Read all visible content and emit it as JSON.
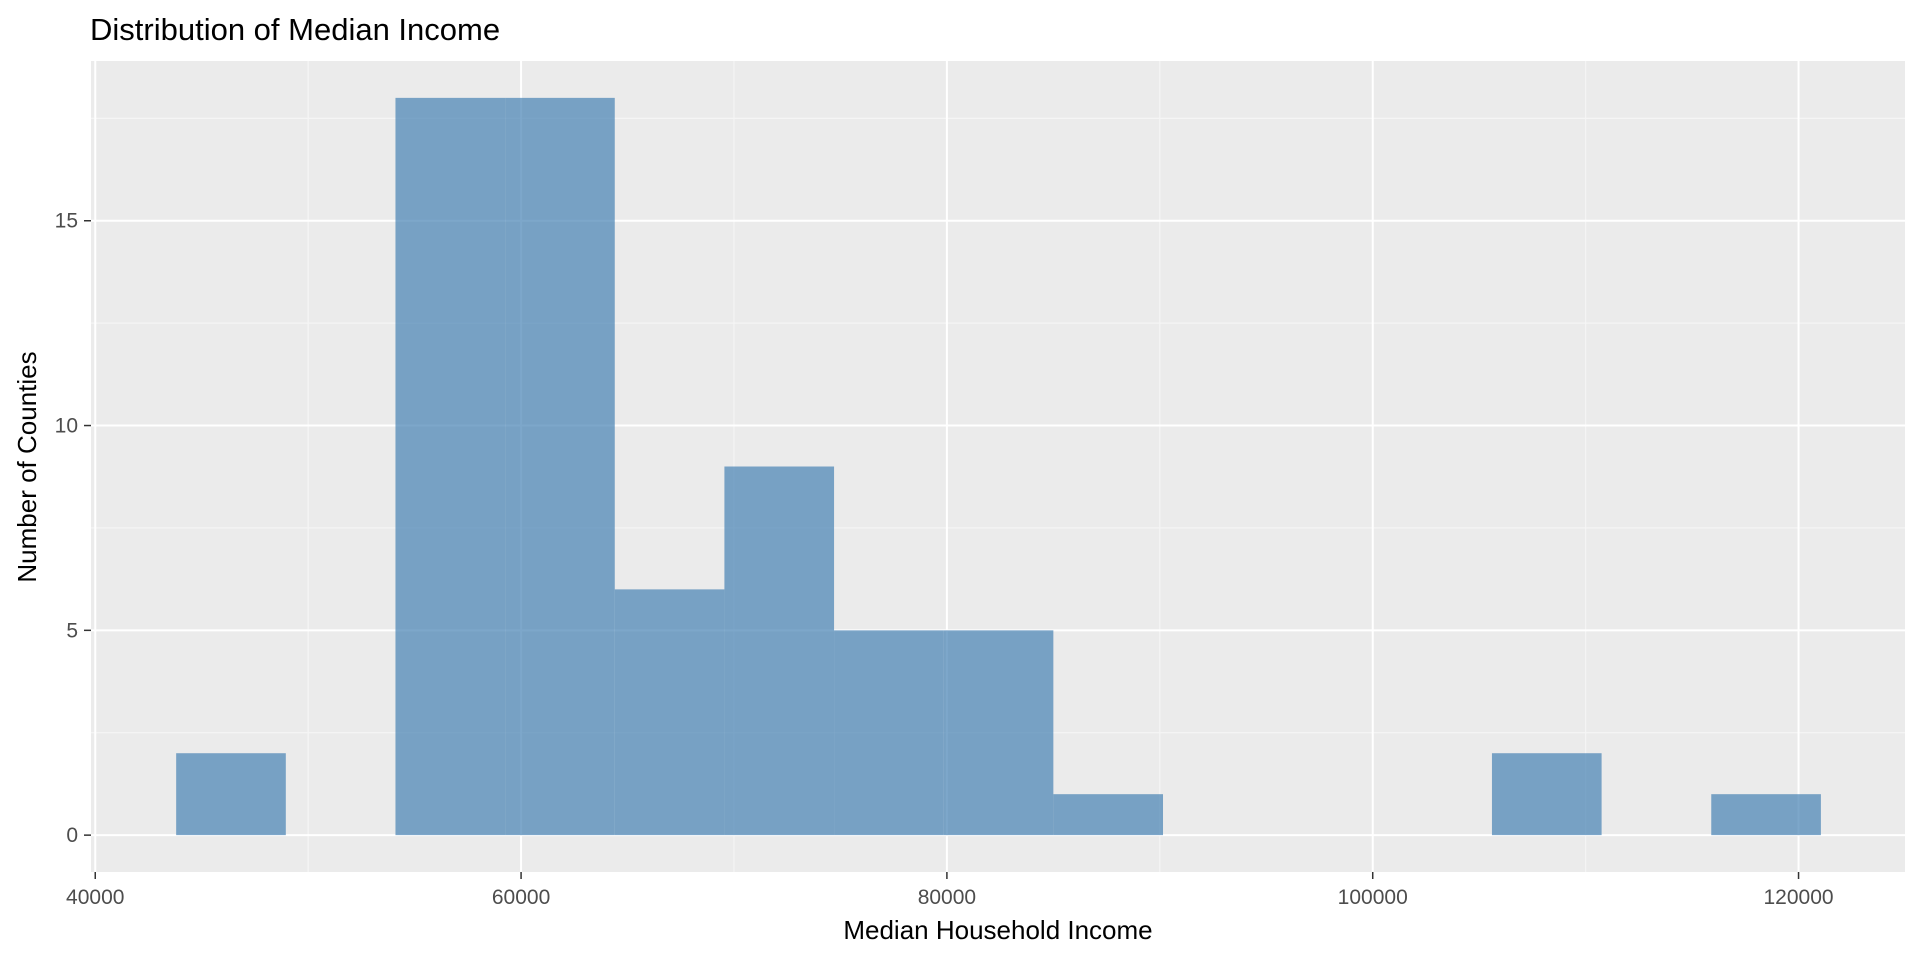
{
  "chart_data": {
    "type": "bar",
    "title": "Distribution of Median Income",
    "xlabel": "Median Household Income",
    "ylabel": "Number of Counties",
    "bins": [
      {
        "x0": 43800,
        "x1": 48950,
        "count": 2
      },
      {
        "x0": 48950,
        "x1": 54100,
        "count": 0
      },
      {
        "x0": 54100,
        "x1": 59250,
        "count": 18
      },
      {
        "x0": 59250,
        "x1": 64400,
        "count": 18
      },
      {
        "x0": 64400,
        "x1": 69550,
        "count": 6
      },
      {
        "x0": 69550,
        "x1": 74700,
        "count": 9
      },
      {
        "x0": 74700,
        "x1": 79850,
        "count": 5
      },
      {
        "x0": 79850,
        "x1": 85000,
        "count": 5
      },
      {
        "x0": 85000,
        "x1": 90150,
        "count": 1
      },
      {
        "x0": 90150,
        "x1": 95300,
        "count": 0
      },
      {
        "x0": 95300,
        "x1": 100450,
        "count": 0
      },
      {
        "x0": 100450,
        "x1": 105600,
        "count": 0
      },
      {
        "x0": 105600,
        "x1": 110750,
        "count": 2
      },
      {
        "x0": 110750,
        "x1": 115900,
        "count": 0
      },
      {
        "x0": 115900,
        "x1": 121050,
        "count": 1
      }
    ],
    "xlim": [
      39800,
      125000
    ],
    "ylim": [
      -0.9,
      18.9
    ],
    "x_ticks": [
      40000,
      60000,
      80000,
      100000,
      120000
    ],
    "x_tick_labels": [
      "40000",
      "60000",
      "80000",
      "100000",
      "120000"
    ],
    "y_ticks": [
      0,
      5,
      10,
      15
    ],
    "y_tick_labels": [
      "0",
      "5",
      "10",
      "15"
    ],
    "grid": true,
    "legend": "none",
    "colors": {
      "bar": "#4682b4",
      "bar_opacity": 0.7,
      "panel_background": "#ebebeb",
      "grid_major": "#ffffff",
      "grid_minor": "#f5f5f5",
      "tick": "#333333"
    }
  }
}
